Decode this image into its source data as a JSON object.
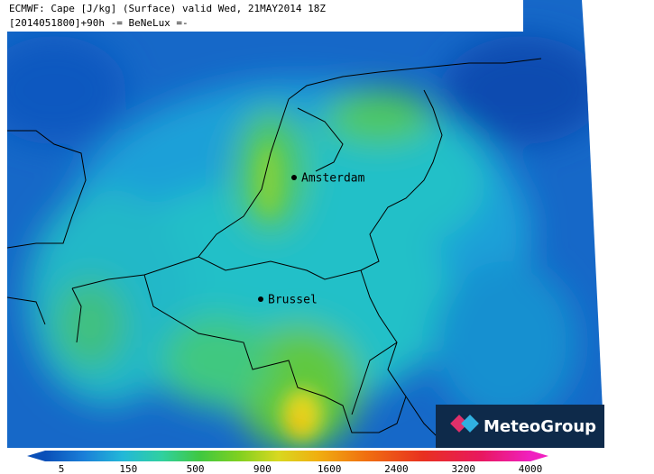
{
  "header": {
    "line1": "ECMWF: Cape [J/kg] (Surface) valid Wed, 21MAY2014 18Z",
    "line2": "[2014051800]+90h -= BeNeLux =-"
  },
  "cities": [
    {
      "label": "Amsterdam"
    },
    {
      "label": "Brussel"
    }
  ],
  "colorbar": {
    "ticks": [
      5,
      150,
      500,
      900,
      1600,
      2400,
      3200,
      4000
    ]
  },
  "logo": {
    "text": "MeteoGroup"
  }
}
